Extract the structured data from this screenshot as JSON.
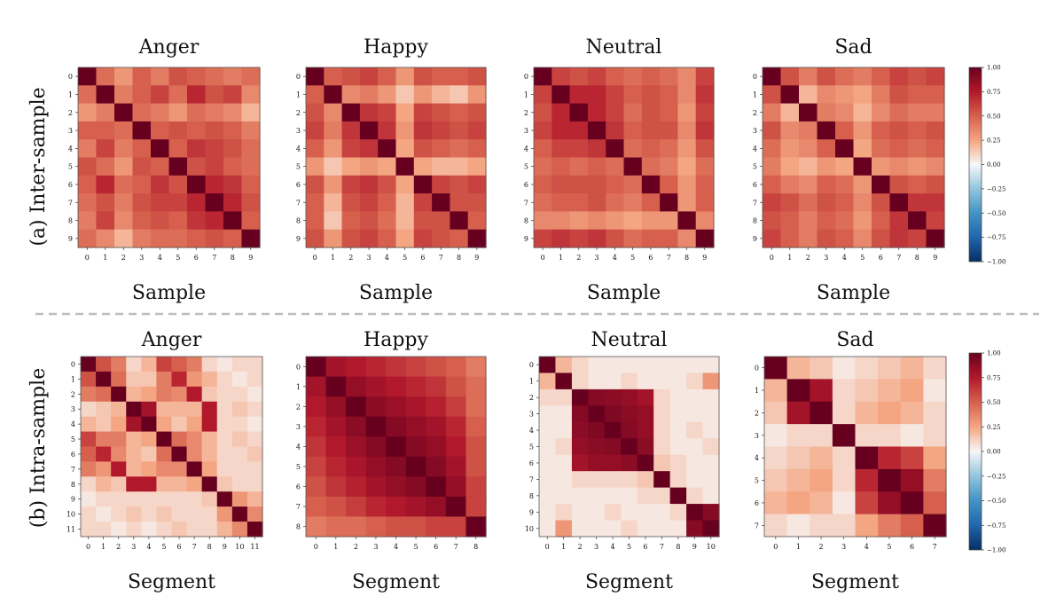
{
  "row_labels": [
    "(a) Inter-sample",
    "(b) Intra-sample"
  ],
  "colors": {
    "positive": "#67001f",
    "neutral": "#f7f7f7",
    "negative": "#053061"
  },
  "colorbar_ticks": [
    "1.00",
    "0.75",
    "0.50",
    "0.25",
    "0.00",
    "−0.25",
    "−0.50",
    "−0.75",
    "−1.00"
  ],
  "chart_data": [
    {
      "type": "heatmap",
      "row": 0,
      "title": "Anger",
      "xlabel": "Sample",
      "vmin": -1,
      "vmax": 1,
      "x_ticks": [
        "0",
        "1",
        "2",
        "3",
        "4",
        "5",
        "6",
        "7",
        "8",
        "9"
      ],
      "y_ticks": [
        "0",
        "1",
        "2",
        "3",
        "4",
        "5",
        "6",
        "7",
        "8",
        "9"
      ],
      "values": [
        [
          1.0,
          0.45,
          0.3,
          0.5,
          0.4,
          0.55,
          0.5,
          0.45,
          0.4,
          0.45
        ],
        [
          0.45,
          1.0,
          0.4,
          0.5,
          0.6,
          0.45,
          0.7,
          0.55,
          0.6,
          0.35
        ],
        [
          0.3,
          0.4,
          1.0,
          0.45,
          0.4,
          0.3,
          0.45,
          0.4,
          0.35,
          0.2
        ],
        [
          0.5,
          0.5,
          0.45,
          1.0,
          0.5,
          0.55,
          0.5,
          0.55,
          0.5,
          0.4
        ],
        [
          0.4,
          0.6,
          0.4,
          0.5,
          1.0,
          0.5,
          0.65,
          0.6,
          0.55,
          0.45
        ],
        [
          0.55,
          0.45,
          0.3,
          0.55,
          0.5,
          1.0,
          0.55,
          0.6,
          0.5,
          0.45
        ],
        [
          0.5,
          0.7,
          0.45,
          0.5,
          0.65,
          0.55,
          1.0,
          0.7,
          0.65,
          0.5
        ],
        [
          0.45,
          0.55,
          0.4,
          0.55,
          0.6,
          0.6,
          0.7,
          1.0,
          0.7,
          0.55
        ],
        [
          0.4,
          0.6,
          0.35,
          0.5,
          0.55,
          0.5,
          0.65,
          0.7,
          1.0,
          0.5
        ],
        [
          0.45,
          0.35,
          0.2,
          0.4,
          0.45,
          0.45,
          0.5,
          0.55,
          0.5,
          1.0
        ]
      ]
    },
    {
      "type": "heatmap",
      "row": 0,
      "title": "Happy",
      "xlabel": "Sample",
      "vmin": -1,
      "vmax": 1,
      "x_ticks": [
        "0",
        "1",
        "2",
        "3",
        "4",
        "5",
        "6",
        "7",
        "8",
        "9"
      ],
      "y_ticks": [
        "0",
        "1",
        "2",
        "3",
        "4",
        "5",
        "6",
        "7",
        "8",
        "9"
      ],
      "values": [
        [
          1.0,
          0.5,
          0.55,
          0.6,
          0.5,
          0.3,
          0.55,
          0.5,
          0.5,
          0.55
        ],
        [
          0.5,
          1.0,
          0.35,
          0.4,
          0.3,
          0.15,
          0.3,
          0.2,
          0.15,
          0.3
        ],
        [
          0.55,
          0.35,
          1.0,
          0.65,
          0.6,
          0.25,
          0.6,
          0.55,
          0.5,
          0.55
        ],
        [
          0.6,
          0.4,
          0.65,
          1.0,
          0.65,
          0.3,
          0.65,
          0.6,
          0.55,
          0.6
        ],
        [
          0.5,
          0.3,
          0.6,
          0.65,
          1.0,
          0.25,
          0.55,
          0.5,
          0.45,
          0.5
        ],
        [
          0.3,
          0.15,
          0.25,
          0.3,
          0.25,
          1.0,
          0.25,
          0.2,
          0.2,
          0.25
        ],
        [
          0.55,
          0.3,
          0.6,
          0.65,
          0.55,
          0.25,
          1.0,
          0.6,
          0.55,
          0.6
        ],
        [
          0.5,
          0.2,
          0.55,
          0.6,
          0.5,
          0.2,
          0.6,
          1.0,
          0.55,
          0.55
        ],
        [
          0.5,
          0.15,
          0.5,
          0.55,
          0.45,
          0.2,
          0.55,
          0.55,
          1.0,
          0.5
        ],
        [
          0.55,
          0.3,
          0.55,
          0.6,
          0.5,
          0.25,
          0.6,
          0.55,
          0.5,
          1.0
        ]
      ]
    },
    {
      "type": "heatmap",
      "row": 0,
      "title": "Neutral",
      "xlabel": "Sample",
      "vmin": -1,
      "vmax": 1,
      "x_ticks": [
        "0",
        "1",
        "2",
        "3",
        "4",
        "5",
        "6",
        "7",
        "8",
        "9"
      ],
      "y_ticks": [
        "0",
        "1",
        "2",
        "3",
        "4",
        "5",
        "6",
        "7",
        "8",
        "9"
      ],
      "values": [
        [
          1.0,
          0.6,
          0.55,
          0.6,
          0.5,
          0.45,
          0.5,
          0.45,
          0.35,
          0.6
        ],
        [
          0.6,
          1.0,
          0.7,
          0.7,
          0.6,
          0.5,
          0.55,
          0.5,
          0.35,
          0.65
        ],
        [
          0.55,
          0.7,
          1.0,
          0.7,
          0.6,
          0.45,
          0.55,
          0.5,
          0.3,
          0.6
        ],
        [
          0.6,
          0.7,
          0.7,
          1.0,
          0.65,
          0.5,
          0.55,
          0.55,
          0.35,
          0.65
        ],
        [
          0.5,
          0.6,
          0.6,
          0.65,
          1.0,
          0.45,
          0.5,
          0.45,
          0.3,
          0.55
        ],
        [
          0.45,
          0.5,
          0.45,
          0.5,
          0.45,
          1.0,
          0.45,
          0.4,
          0.25,
          0.45
        ],
        [
          0.5,
          0.55,
          0.55,
          0.55,
          0.5,
          0.45,
          1.0,
          0.5,
          0.3,
          0.5
        ],
        [
          0.45,
          0.5,
          0.5,
          0.55,
          0.45,
          0.4,
          0.5,
          1.0,
          0.3,
          0.5
        ],
        [
          0.35,
          0.35,
          0.3,
          0.35,
          0.3,
          0.25,
          0.3,
          0.3,
          1.0,
          0.35
        ],
        [
          0.6,
          0.65,
          0.6,
          0.65,
          0.55,
          0.45,
          0.5,
          0.5,
          0.35,
          1.0
        ]
      ]
    },
    {
      "type": "heatmap",
      "row": 0,
      "title": "Sad",
      "xlabel": "Sample",
      "vmin": -1,
      "vmax": 1,
      "x_ticks": [
        "0",
        "1",
        "2",
        "3",
        "4",
        "5",
        "6",
        "7",
        "8",
        "9"
      ],
      "y_ticks": [
        "0",
        "1",
        "2",
        "3",
        "4",
        "5",
        "6",
        "7",
        "8",
        "9"
      ],
      "values": [
        [
          1.0,
          0.55,
          0.4,
          0.55,
          0.45,
          0.4,
          0.5,
          0.6,
          0.55,
          0.6
        ],
        [
          0.55,
          1.0,
          0.2,
          0.35,
          0.3,
          0.25,
          0.4,
          0.55,
          0.5,
          0.5
        ],
        [
          0.4,
          0.2,
          1.0,
          0.4,
          0.35,
          0.2,
          0.35,
          0.45,
          0.4,
          0.4
        ],
        [
          0.55,
          0.35,
          0.4,
          1.0,
          0.5,
          0.3,
          0.5,
          0.55,
          0.5,
          0.55
        ],
        [
          0.45,
          0.3,
          0.35,
          0.5,
          1.0,
          0.25,
          0.45,
          0.5,
          0.45,
          0.5
        ],
        [
          0.4,
          0.25,
          0.2,
          0.3,
          0.25,
          1.0,
          0.3,
          0.35,
          0.3,
          0.35
        ],
        [
          0.5,
          0.4,
          0.35,
          0.5,
          0.45,
          0.3,
          1.0,
          0.55,
          0.5,
          0.55
        ],
        [
          0.6,
          0.55,
          0.45,
          0.55,
          0.5,
          0.35,
          0.55,
          1.0,
          0.65,
          0.65
        ],
        [
          0.55,
          0.5,
          0.4,
          0.5,
          0.45,
          0.3,
          0.5,
          0.65,
          1.0,
          0.6
        ],
        [
          0.6,
          0.5,
          0.4,
          0.55,
          0.5,
          0.35,
          0.55,
          0.65,
          0.6,
          1.0
        ]
      ]
    },
    {
      "type": "heatmap",
      "row": 1,
      "title": "Anger",
      "xlabel": "Segment",
      "vmin": -1,
      "vmax": 1,
      "x_ticks": [
        "0",
        "1",
        "2",
        "3",
        "4",
        "5",
        "6",
        "7",
        "8",
        "9",
        "10",
        "11"
      ],
      "y_ticks": [
        "0",
        "1",
        "2",
        "3",
        "4",
        "5",
        "6",
        "7",
        "8",
        "9",
        "10",
        "11"
      ],
      "values": [
        [
          1.0,
          0.55,
          0.4,
          0.1,
          0.2,
          0.6,
          0.5,
          0.4,
          0.1,
          0.05,
          0.1,
          0.1
        ],
        [
          0.55,
          1.0,
          0.45,
          0.15,
          0.15,
          0.4,
          0.7,
          0.3,
          0.2,
          0.1,
          0.05,
          0.1
        ],
        [
          0.4,
          0.45,
          1.0,
          0.2,
          0.25,
          0.4,
          0.35,
          0.75,
          0.15,
          0.1,
          0.1,
          0.05
        ],
        [
          0.1,
          0.15,
          0.2,
          1.0,
          0.8,
          0.2,
          0.2,
          0.2,
          0.75,
          0.1,
          0.15,
          0.1
        ],
        [
          0.2,
          0.15,
          0.25,
          0.8,
          1.0,
          0.25,
          0.15,
          0.25,
          0.75,
          0.1,
          0.1,
          0.05
        ],
        [
          0.6,
          0.4,
          0.4,
          0.2,
          0.25,
          1.0,
          0.45,
          0.35,
          0.2,
          0.1,
          0.15,
          0.1
        ],
        [
          0.5,
          0.7,
          0.35,
          0.2,
          0.15,
          0.45,
          1.0,
          0.35,
          0.2,
          0.1,
          0.1,
          0.15
        ],
        [
          0.4,
          0.3,
          0.75,
          0.2,
          0.25,
          0.35,
          0.35,
          1.0,
          0.25,
          0.1,
          0.1,
          0.1
        ],
        [
          0.1,
          0.2,
          0.15,
          0.75,
          0.75,
          0.2,
          0.2,
          0.25,
          1.0,
          0.15,
          0.1,
          0.1
        ],
        [
          0.05,
          0.1,
          0.1,
          0.1,
          0.1,
          0.1,
          0.1,
          0.1,
          0.15,
          1.0,
          0.3,
          0.2
        ],
        [
          0.1,
          0.05,
          0.1,
          0.15,
          0.1,
          0.15,
          0.1,
          0.1,
          0.1,
          0.3,
          1.0,
          0.35
        ],
        [
          0.1,
          0.1,
          0.05,
          0.1,
          0.05,
          0.1,
          0.15,
          0.1,
          0.1,
          0.2,
          0.35,
          1.0
        ]
      ]
    },
    {
      "type": "heatmap",
      "row": 1,
      "title": "Happy",
      "xlabel": "Segment",
      "vmin": -1,
      "vmax": 1,
      "x_ticks": [
        "0",
        "1",
        "2",
        "3",
        "4",
        "5",
        "6",
        "7",
        "8"
      ],
      "y_ticks": [
        "0",
        "1",
        "2",
        "3",
        "4",
        "5",
        "6",
        "7",
        "8"
      ],
      "values": [
        [
          1.0,
          0.8,
          0.75,
          0.7,
          0.65,
          0.6,
          0.55,
          0.5,
          0.4
        ],
        [
          0.8,
          1.0,
          0.85,
          0.8,
          0.75,
          0.7,
          0.65,
          0.55,
          0.45
        ],
        [
          0.75,
          0.85,
          1.0,
          0.88,
          0.83,
          0.78,
          0.72,
          0.62,
          0.45
        ],
        [
          0.7,
          0.8,
          0.88,
          1.0,
          0.9,
          0.85,
          0.8,
          0.7,
          0.5
        ],
        [
          0.65,
          0.75,
          0.83,
          0.9,
          1.0,
          0.9,
          0.85,
          0.75,
          0.55
        ],
        [
          0.6,
          0.7,
          0.78,
          0.85,
          0.9,
          1.0,
          0.9,
          0.8,
          0.55
        ],
        [
          0.55,
          0.65,
          0.72,
          0.8,
          0.85,
          0.9,
          1.0,
          0.85,
          0.6
        ],
        [
          0.5,
          0.55,
          0.62,
          0.7,
          0.75,
          0.8,
          0.85,
          1.0,
          0.6
        ],
        [
          0.4,
          0.45,
          0.45,
          0.5,
          0.55,
          0.55,
          0.6,
          0.6,
          1.0
        ]
      ]
    },
    {
      "type": "heatmap",
      "row": 1,
      "title": "Neutral",
      "xlabel": "Segment",
      "vmin": -1,
      "vmax": 1,
      "x_ticks": [
        "0",
        "1",
        "2",
        "3",
        "4",
        "5",
        "6",
        "7",
        "8",
        "9",
        "10"
      ],
      "y_ticks": [
        "0",
        "1",
        "2",
        "3",
        "4",
        "5",
        "6",
        "7",
        "8",
        "9",
        "10"
      ],
      "values": [
        [
          1.0,
          0.2,
          0.1,
          0.05,
          0.05,
          0.05,
          0.05,
          0.05,
          0.05,
          0.05,
          0.05
        ],
        [
          0.2,
          1.0,
          0.1,
          0.05,
          0.05,
          0.1,
          0.05,
          0.05,
          0.05,
          0.1,
          0.3
        ],
        [
          0.1,
          0.1,
          1.0,
          0.9,
          0.88,
          0.85,
          0.8,
          0.1,
          0.05,
          0.05,
          0.05
        ],
        [
          0.05,
          0.05,
          0.9,
          1.0,
          0.92,
          0.88,
          0.85,
          0.1,
          0.05,
          0.05,
          0.05
        ],
        [
          0.05,
          0.05,
          0.88,
          0.92,
          1.0,
          0.9,
          0.85,
          0.1,
          0.05,
          0.1,
          0.05
        ],
        [
          0.05,
          0.1,
          0.85,
          0.88,
          0.9,
          1.0,
          0.88,
          0.1,
          0.05,
          0.05,
          0.1
        ],
        [
          0.05,
          0.05,
          0.8,
          0.85,
          0.85,
          0.88,
          1.0,
          0.15,
          0.1,
          0.05,
          0.05
        ],
        [
          0.05,
          0.05,
          0.1,
          0.1,
          0.1,
          0.1,
          0.15,
          1.0,
          0.1,
          0.05,
          0.05
        ],
        [
          0.05,
          0.05,
          0.05,
          0.05,
          0.05,
          0.05,
          0.1,
          0.1,
          1.0,
          0.1,
          0.05
        ],
        [
          0.05,
          0.1,
          0.05,
          0.05,
          0.1,
          0.05,
          0.05,
          0.05,
          0.1,
          1.0,
          0.9
        ],
        [
          0.05,
          0.3,
          0.05,
          0.05,
          0.05,
          0.1,
          0.05,
          0.05,
          0.05,
          0.9,
          1.0
        ]
      ]
    },
    {
      "type": "heatmap",
      "row": 1,
      "title": "Sad",
      "xlabel": "Segment",
      "vmin": -1,
      "vmax": 1,
      "x_ticks": [
        "0",
        "1",
        "2",
        "3",
        "4",
        "5",
        "6",
        "7"
      ],
      "y_ticks": [
        "0",
        "1",
        "2",
        "3",
        "4",
        "5",
        "6",
        "7"
      ],
      "values": [
        [
          1.0,
          0.2,
          0.15,
          0.05,
          0.1,
          0.15,
          0.2,
          0.1
        ],
        [
          0.2,
          1.0,
          0.8,
          0.1,
          0.15,
          0.2,
          0.25,
          0.05
        ],
        [
          0.15,
          0.8,
          1.0,
          0.1,
          0.2,
          0.25,
          0.2,
          0.1
        ],
        [
          0.05,
          0.1,
          0.1,
          1.0,
          0.1,
          0.1,
          0.05,
          0.1
        ],
        [
          0.1,
          0.15,
          0.2,
          0.1,
          1.0,
          0.7,
          0.6,
          0.25
        ],
        [
          0.15,
          0.2,
          0.25,
          0.1,
          0.7,
          1.0,
          0.85,
          0.4
        ],
        [
          0.2,
          0.25,
          0.2,
          0.05,
          0.6,
          0.85,
          1.0,
          0.5
        ],
        [
          0.1,
          0.05,
          0.1,
          0.1,
          0.25,
          0.4,
          0.5,
          1.0
        ]
      ]
    }
  ]
}
